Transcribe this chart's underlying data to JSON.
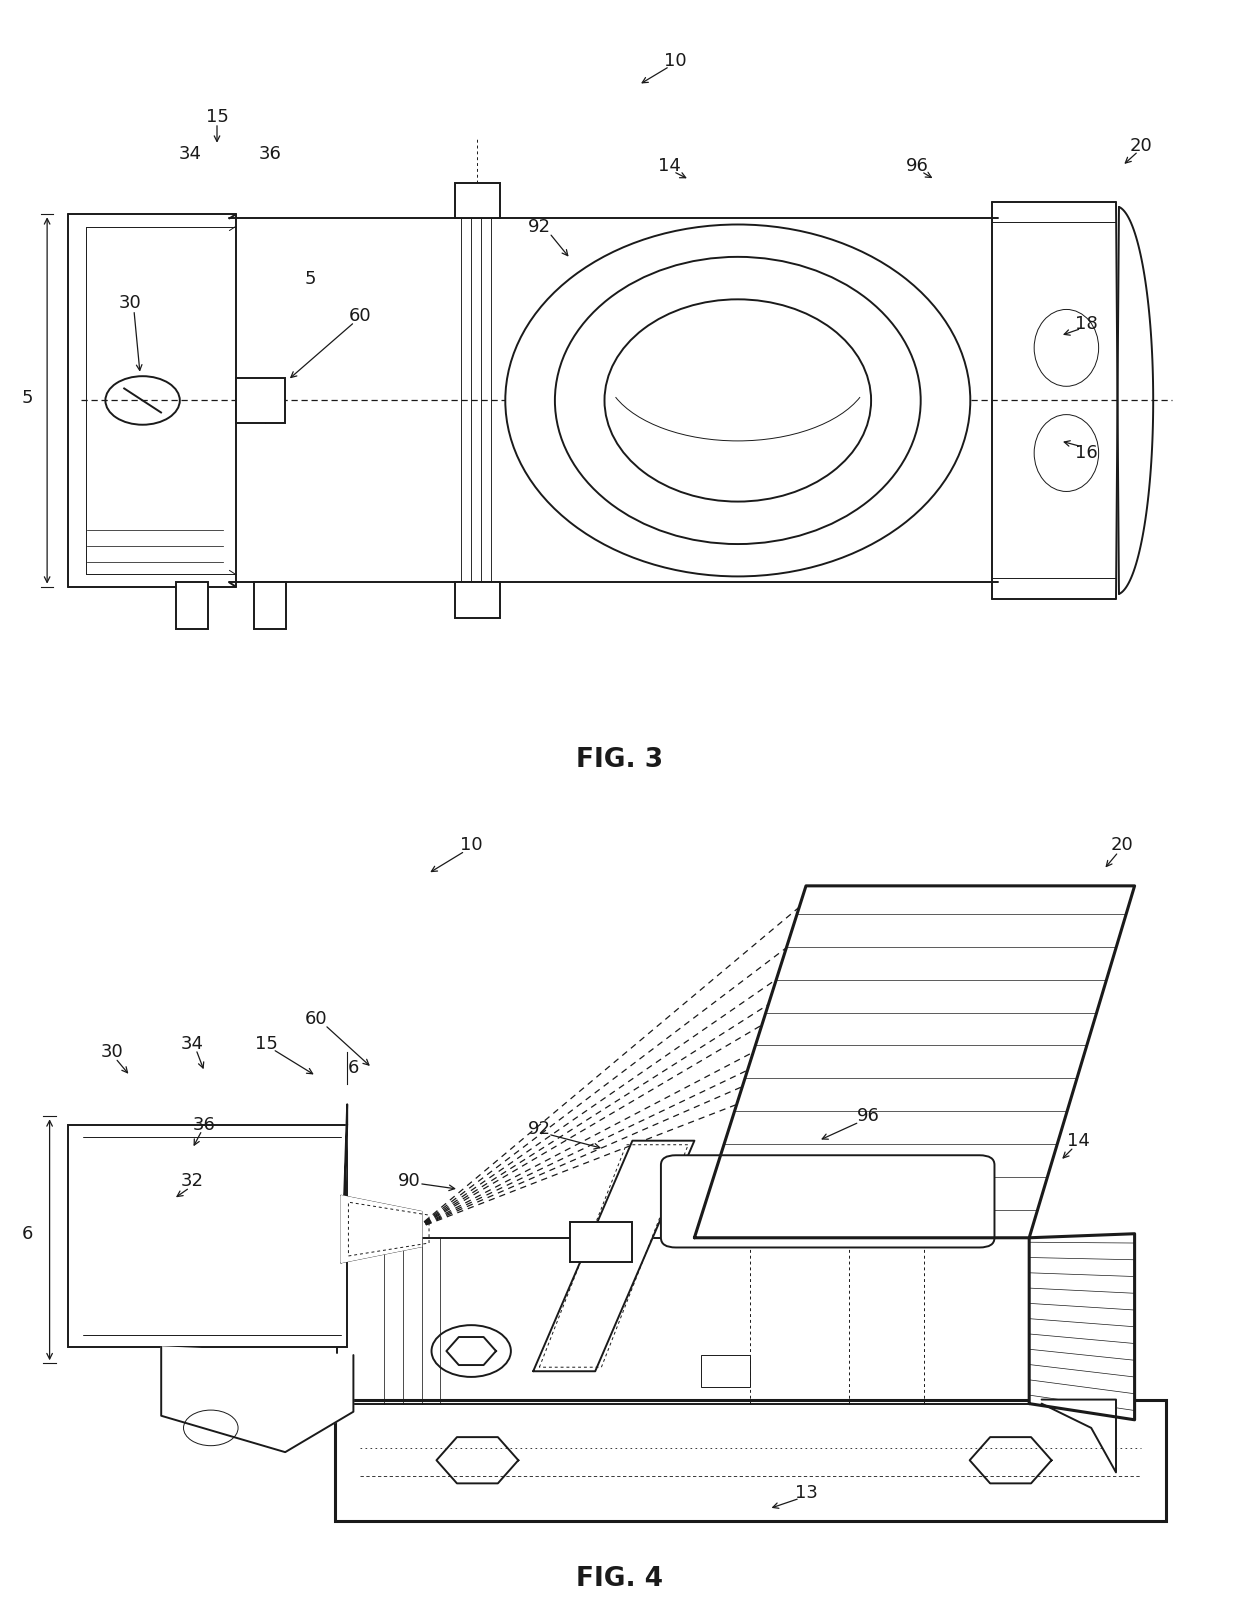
{
  "fig_width": 12.4,
  "fig_height": 16.18,
  "bg_color": "#ffffff",
  "line_color": "#1a1a1a",
  "lw": 1.4,
  "lw_thin": 0.7,
  "lw_thick": 2.2,
  "lw_dash": 0.9,
  "fs_label": 13,
  "fs_title": 19,
  "fig3_title": "FIG. 3",
  "fig4_title": "FIG. 4"
}
